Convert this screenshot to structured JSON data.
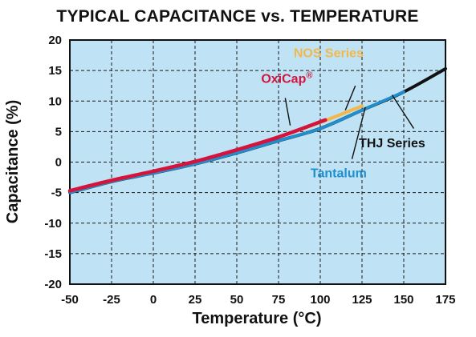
{
  "chart_data": {
    "type": "line",
    "title": "TYPICAL CAPACITANCE vs. TEMPERATURE",
    "xlabel": "Temperature (°C)",
    "ylabel": "Capacitance (%)",
    "xlim": [
      -50,
      175
    ],
    "ylim": [
      -20,
      20
    ],
    "xticks": [
      -50,
      -25,
      0,
      25,
      50,
      75,
      100,
      125,
      150,
      175
    ],
    "yticks": [
      -20,
      -15,
      -10,
      -5,
      0,
      5,
      10,
      15,
      20
    ],
    "grid": true,
    "plot_background": "#bfe3f5",
    "grid_color": "#1a1a1a",
    "series": [
      {
        "name": "THJ Series",
        "color": "#111111",
        "points": [
          [
            -50,
            -5.0
          ],
          [
            -25,
            -3.2
          ],
          [
            0,
            -1.8
          ],
          [
            25,
            -0.3
          ],
          [
            50,
            1.5
          ],
          [
            75,
            3.5
          ],
          [
            100,
            5.5
          ],
          [
            125,
            8.5
          ],
          [
            150,
            11.5
          ],
          [
            175,
            15.3
          ]
        ]
      },
      {
        "name": "Tantalum",
        "color": "#1f8fd0",
        "points": [
          [
            -50,
            -5.0
          ],
          [
            -25,
            -3.2
          ],
          [
            0,
            -1.8
          ],
          [
            25,
            -0.3
          ],
          [
            50,
            1.5
          ],
          [
            75,
            3.5
          ],
          [
            100,
            5.5
          ],
          [
            125,
            8.5
          ],
          [
            150,
            11.5
          ]
        ]
      },
      {
        "name": "NOS Series",
        "color": "#f2b84b",
        "points": [
          [
            -50,
            -4.7
          ],
          [
            -25,
            -3.0
          ],
          [
            0,
            -1.5
          ],
          [
            25,
            0.1
          ],
          [
            50,
            2.0
          ],
          [
            75,
            4.1
          ],
          [
            100,
            6.5
          ],
          [
            125,
            9.2
          ]
        ]
      },
      {
        "name": "OxiCap®",
        "color": "#d4143c",
        "points": [
          [
            -50,
            -4.7
          ],
          [
            -25,
            -3.0
          ],
          [
            0,
            -1.5
          ],
          [
            25,
            0.1
          ],
          [
            50,
            2.0
          ],
          [
            75,
            4.1
          ],
          [
            103,
            6.9
          ]
        ]
      }
    ],
    "annotations": [
      {
        "label": "NOS Series",
        "color": "#f2b84b",
        "text_x": 105,
        "text_y": 17.2,
        "leader_from": [
          121,
          12.5
        ],
        "leader_to": [
          115,
          8.5
        ]
      },
      {
        "label": "OxiCap",
        "super": "®",
        "color": "#d4143c",
        "text_x": 80,
        "text_y": 13.0,
        "leader_from": [
          79,
          10.5
        ],
        "leader_to": [
          82,
          6.0
        ]
      },
      {
        "label": "THJ Series",
        "color": "#111111",
        "text_x": 143,
        "text_y": 2.4,
        "leader_from": [
          156,
          5.5
        ],
        "leader_to": [
          143,
          11.0
        ]
      },
      {
        "label": "Tantalum",
        "color": "#1f8fd0",
        "text_x": 111,
        "text_y": -2.5,
        "leader_from": [
          119,
          0.5
        ],
        "leader_to": [
          127,
          9.0
        ]
      }
    ]
  }
}
